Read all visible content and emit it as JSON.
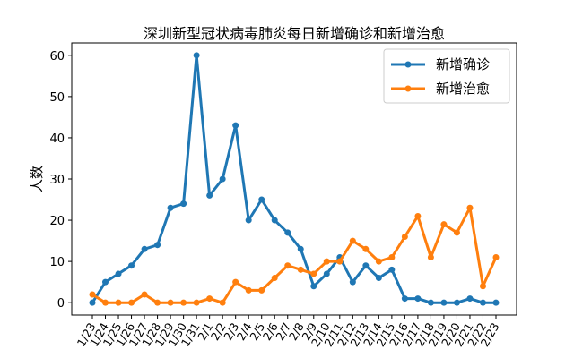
{
  "chart_data": {
    "type": "line",
    "title": "深圳新型冠状病毒肺炎每日新增确诊和新增治愈",
    "xlabel": "",
    "ylabel": "人数",
    "ylim": [
      -3,
      63
    ],
    "yticks": [
      0,
      10,
      20,
      30,
      40,
      50,
      60
    ],
    "categories": [
      "1/23",
      "1/24",
      "1/25",
      "1/26",
      "1/27",
      "1/28",
      "1/29",
      "1/30",
      "1/31",
      "2/1",
      "2/2",
      "2/3",
      "2/4",
      "2/5",
      "2/6",
      "2/7",
      "2/8",
      "2/9",
      "2/10",
      "2/11",
      "2/12",
      "2/13",
      "2/14",
      "2/15",
      "2/16",
      "2/17",
      "2/18",
      "2/19",
      "2/20",
      "2/21",
      "2/22",
      "2/23"
    ],
    "series": [
      {
        "name": "新增确诊",
        "color": "#1f77b4",
        "values": [
          0,
          5,
          7,
          9,
          13,
          14,
          23,
          24,
          60,
          26,
          30,
          43,
          20,
          25,
          20,
          17,
          13,
          4,
          7,
          11,
          5,
          9,
          6,
          8,
          1,
          1,
          0,
          0,
          0,
          1,
          0,
          0
        ]
      },
      {
        "name": "新增治愈",
        "color": "#ff7f0e",
        "values": [
          2,
          0,
          0,
          0,
          2,
          0,
          0,
          0,
          0,
          1,
          0,
          5,
          3,
          3,
          6,
          9,
          8,
          7,
          10,
          10,
          15,
          13,
          10,
          11,
          16,
          21,
          11,
          19,
          17,
          23,
          4,
          11
        ]
      }
    ],
    "legend": "top-right",
    "grid": false
  }
}
